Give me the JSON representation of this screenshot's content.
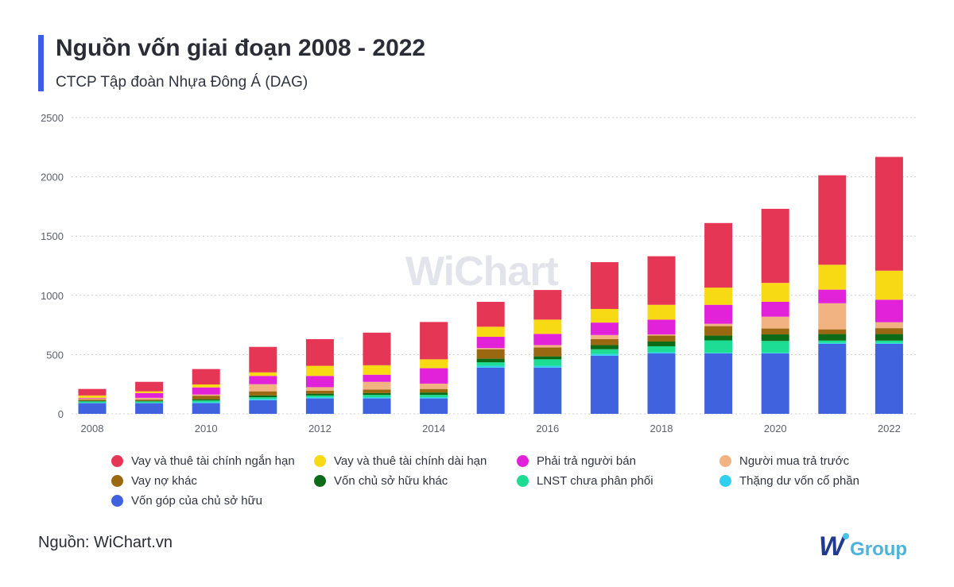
{
  "header": {
    "title": "Nguồn vốn giai đoạn 2008 - 2022",
    "subtitle": "CTCP Tập đoàn Nhựa Đông Á (DAG)"
  },
  "watermark": "WiChart",
  "footer": {
    "source": "Nguồn: WiChart.vn",
    "brand_w": "W",
    "brand_group": "Group"
  },
  "chart_data": {
    "type": "bar",
    "stacked": true,
    "title": "Nguồn vốn giai đoạn 2008 - 2022",
    "subtitle": "CTCP Tập đoàn Nhựa Đông Á (DAG)",
    "xlabel": "",
    "ylabel": "",
    "ylim": [
      0,
      2500
    ],
    "yticks": [
      0,
      500,
      1000,
      1500,
      2000,
      2500
    ],
    "grid": true,
    "legend_position": "bottom",
    "categories": [
      "2008",
      "2009",
      "2010",
      "2011",
      "2012",
      "2013",
      "2014",
      "2015",
      "2016",
      "2017",
      "2018",
      "2019",
      "2020",
      "2021",
      "2022"
    ],
    "x_tick_labels": [
      "2008",
      "2010",
      "2012",
      "2014",
      "2016",
      "2018",
      "2020",
      "2022"
    ],
    "series": [
      {
        "name": "Vốn góp của chủ sở hữu",
        "color": "#4162df",
        "values": [
          90,
          90,
          90,
          115,
          130,
          130,
          130,
          390,
          390,
          490,
          510,
          510,
          510,
          590,
          590
        ]
      },
      {
        "name": "Thặng dư vốn cổ phần",
        "color": "#2fd0ee",
        "values": [
          3,
          3,
          8,
          10,
          10,
          10,
          10,
          15,
          15,
          15,
          10,
          5,
          5,
          8,
          8
        ]
      },
      {
        "name": "LNST chưa phân phối",
        "color": "#1ddc93",
        "values": [
          12,
          12,
          15,
          15,
          15,
          20,
          20,
          30,
          55,
          40,
          50,
          105,
          100,
          20,
          20
        ]
      },
      {
        "name": "Vốn chủ sở hữu khác",
        "color": "#0c6b16",
        "values": [
          5,
          5,
          10,
          15,
          15,
          15,
          20,
          30,
          25,
          35,
          40,
          40,
          55,
          55,
          55
        ]
      },
      {
        "name": "Vay nợ khác",
        "color": "#9a6811",
        "values": [
          10,
          10,
          30,
          35,
          25,
          30,
          30,
          80,
          75,
          50,
          50,
          80,
          50,
          40,
          50
        ]
      },
      {
        "name": "Người mua trả trước",
        "color": "#f1b382",
        "values": [
          10,
          15,
          10,
          60,
          30,
          65,
          45,
          10,
          20,
          35,
          10,
          20,
          100,
          220,
          50
        ]
      },
      {
        "name": "Phải trả người bán",
        "color": "#e222d8",
        "values": [
          5,
          40,
          60,
          70,
          95,
          60,
          130,
          95,
          95,
          105,
          125,
          160,
          125,
          115,
          190
        ]
      },
      {
        "name": "Vay và thuê tài chính dài hạn",
        "color": "#f7da14",
        "values": [
          20,
          15,
          25,
          30,
          85,
          80,
          75,
          85,
          120,
          115,
          125,
          145,
          160,
          210,
          245
        ]
      },
      {
        "name": "Vay và thuê tài chính ngắn hạn",
        "color": "#e53755",
        "values": [
          55,
          80,
          130,
          215,
          225,
          275,
          315,
          210,
          250,
          395,
          410,
          545,
          625,
          755,
          960
        ]
      }
    ],
    "legend_order": [
      "Vay và thuê tài chính ngắn hạn",
      "Vay và thuê tài chính dài hạn",
      "Phải trả người bán",
      "Người mua trả trước",
      "Vay nợ khác",
      "Vốn chủ sở hữu khác",
      "LNST chưa phân phối",
      "Thặng dư vốn cổ phần",
      "Vốn góp của chủ sở hữu"
    ]
  }
}
